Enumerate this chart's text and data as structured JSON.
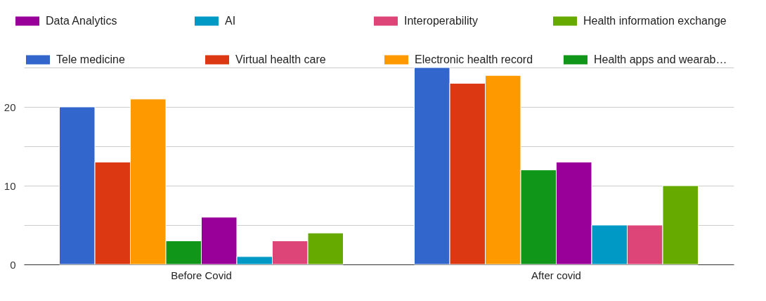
{
  "chart_data": {
    "type": "bar",
    "categories": [
      "Before Covid",
      "After covid"
    ],
    "series": [
      {
        "name": "Tele medicine",
        "color": "#3366cc",
        "values": [
          20,
          25
        ]
      },
      {
        "name": "Virtual health care",
        "color": "#dc3912",
        "values": [
          13,
          23
        ]
      },
      {
        "name": "Electronic health record",
        "color": "#ff9900",
        "values": [
          21,
          24
        ]
      },
      {
        "name": "Health apps and wearab…",
        "color": "#109618",
        "values": [
          3,
          12
        ]
      },
      {
        "name": "Data Analytics",
        "color": "#990099",
        "values": [
          6,
          13
        ]
      },
      {
        "name": "AI",
        "color": "#0099c6",
        "values": [
          1,
          5
        ]
      },
      {
        "name": "Interoperability",
        "color": "#dd4477",
        "values": [
          3,
          5
        ]
      },
      {
        "name": "Health information exchange",
        "color": "#66aa00",
        "values": [
          4,
          10
        ]
      }
    ],
    "ylim": [
      0,
      25
    ],
    "yticks": [
      0,
      {
        "value": 5,
        "label": null
      },
      10,
      {
        "value": 15,
        "label": null
      },
      20,
      {
        "value": 25,
        "label": null
      }
    ],
    "grid": "y",
    "legend": "top"
  }
}
